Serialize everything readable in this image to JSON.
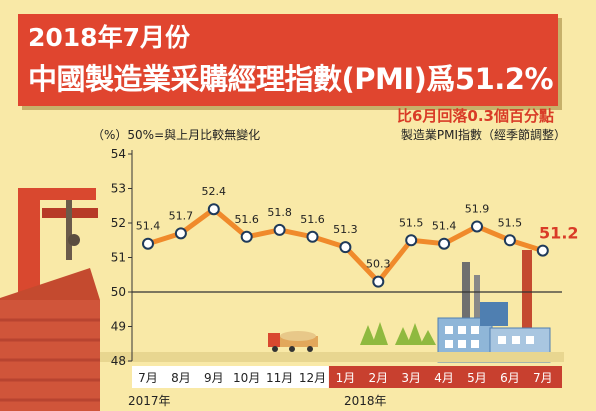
{
  "header": {
    "title_line1": "2018年7月份",
    "title_line2": "中國製造業采購經理指數(PMI)爲51.2%",
    "subtitle": "比6月回落0.3個百分點"
  },
  "notes": {
    "unit": "（%）50%=與上月比較無變化",
    "series": "製造業PMI指數（經季節調整）"
  },
  "years": {
    "y2017": "2017年",
    "y2018": "2018年"
  },
  "colors": {
    "background": "#f9e9a7",
    "title_bg": "#e0452f",
    "line": "#f08a2b",
    "marker_fill": "#ffffff",
    "marker_stroke": "#1f3a5a",
    "highlight": "#d93b27",
    "axis_2018_bg": "#c8402f",
    "factory": "#4f7fb1"
  },
  "chart_data": {
    "type": "line",
    "categories": [
      "7月",
      "8月",
      "9月",
      "10月",
      "11月",
      "12月",
      "1月",
      "2月",
      "3月",
      "4月",
      "5月",
      "6月",
      "7月"
    ],
    "values": [
      51.4,
      51.7,
      52.4,
      51.6,
      51.8,
      51.6,
      51.3,
      50.3,
      51.5,
      51.4,
      51.9,
      51.5,
      51.2
    ],
    "value_labels": [
      "51.4",
      "51.7",
      "52.4",
      "51.6",
      "51.8",
      "51.6",
      "51.3",
      "50.3",
      "51.5",
      "51.4",
      "51.9",
      "51.5",
      "51.2"
    ],
    "ylim": [
      48,
      54
    ],
    "yticks": [
      "48",
      "49",
      "50",
      "51",
      "52",
      "53",
      "54"
    ],
    "reference_line": 50,
    "highlight_last": true,
    "grid": false,
    "legend": "none"
  }
}
